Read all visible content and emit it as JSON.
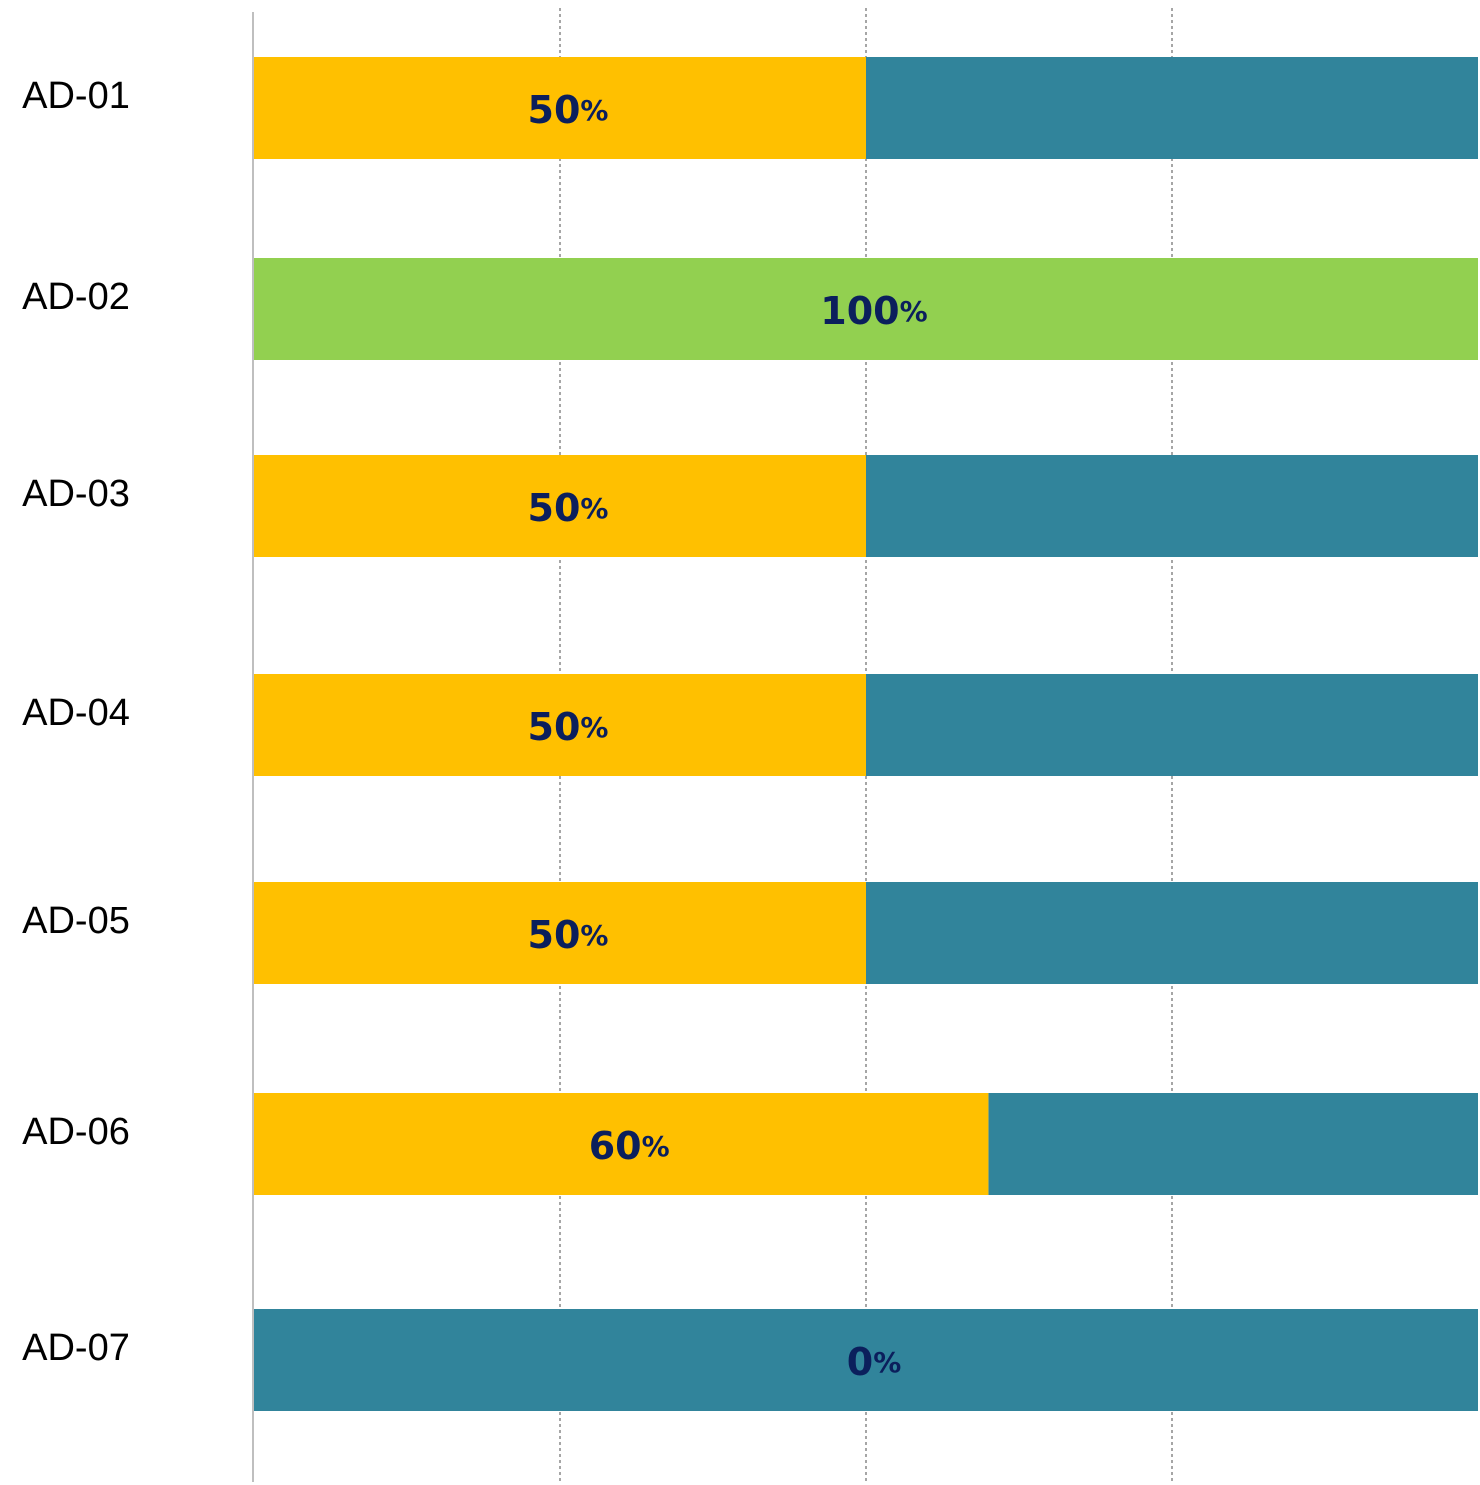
{
  "chart_data": {
    "type": "bar",
    "orientation": "horizontal",
    "stacked": true,
    "title": "",
    "xlabel": "",
    "ylabel": "",
    "xlim": [
      0,
      100
    ],
    "grid": true,
    "legend": "none",
    "categories": [
      "AD-01",
      "AD-02",
      "AD-03",
      "AD-04",
      "AD-05",
      "AD-06",
      "AD-07"
    ],
    "values": [
      50,
      100,
      50,
      50,
      50,
      60,
      0
    ],
    "value_labels": [
      "50",
      "100",
      "50",
      "50",
      "50",
      "60",
      "0"
    ],
    "value_suffix": "%",
    "colors": {
      "partial": "#ffc000",
      "complete": "#92d050",
      "remainder": "#31849b",
      "label_text": "#0b1f5c"
    }
  }
}
